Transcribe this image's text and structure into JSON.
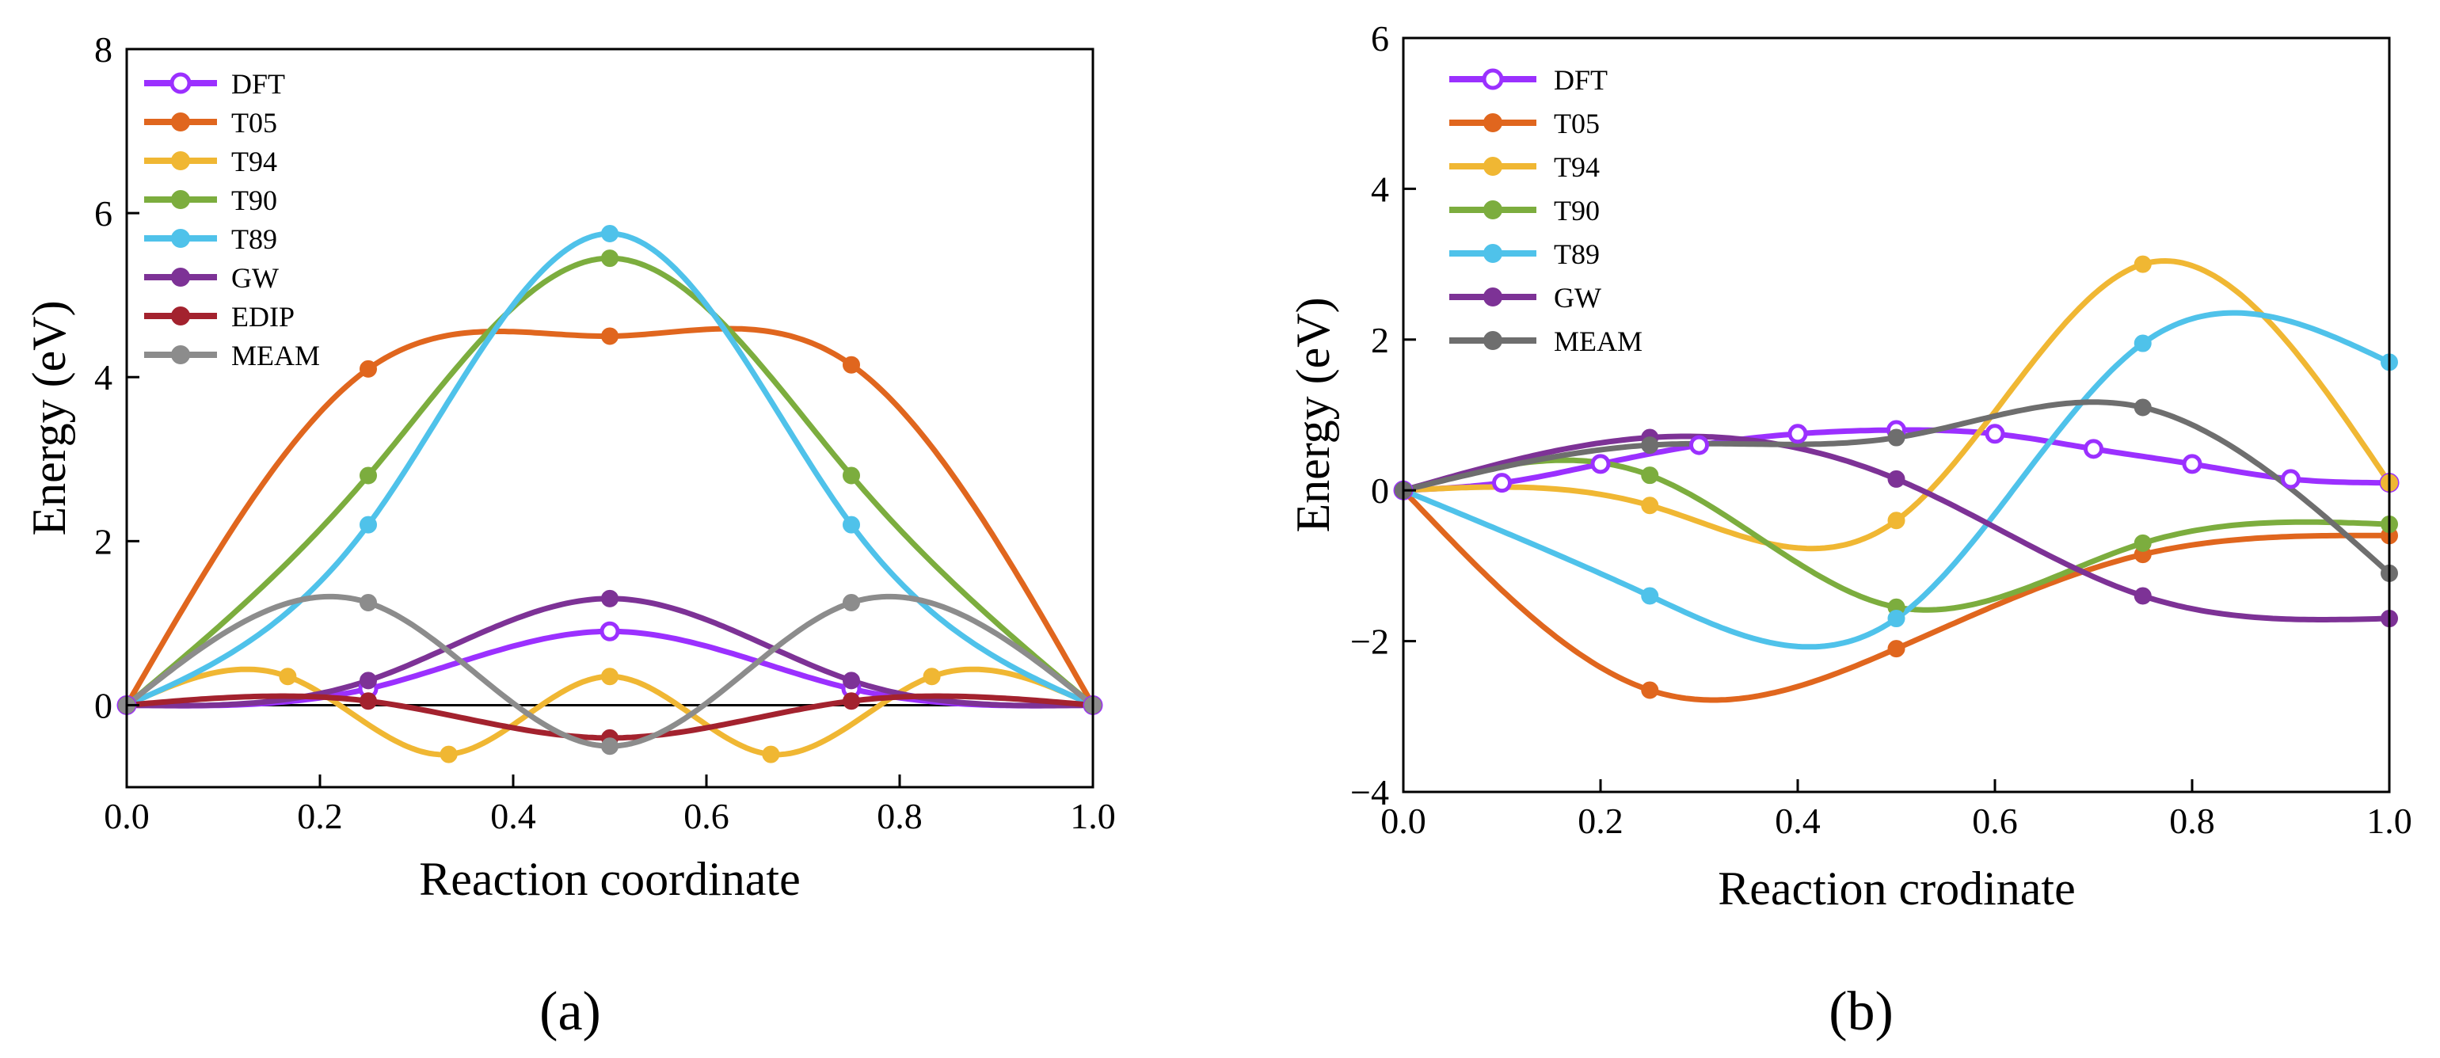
{
  "chart_data": [
    {
      "type": "line",
      "panel_label": "(a)",
      "xlabel": "Reaction coordinate",
      "ylabel": "Energy (eV)",
      "xlim": [
        0,
        1
      ],
      "ylim": [
        -1,
        8
      ],
      "xticks": [
        0.0,
        0.2,
        0.4,
        0.6,
        0.8,
        1.0
      ],
      "xtick_labels": [
        "0.0",
        "0.2",
        "0.4",
        "0.6",
        "0.8",
        "1.0"
      ],
      "yticks": [
        0,
        2,
        4,
        6,
        8
      ],
      "ytick_labels": [
        "0",
        "2",
        "4",
        "6",
        "8"
      ],
      "reference_line": 0,
      "legend_position": "top-left",
      "series": [
        {
          "name": "DFT",
          "color": "#9b30ff",
          "marker": "open-circle",
          "x": [
            0,
            0.25,
            0.5,
            0.75,
            1.0
          ],
          "y": [
            0,
            0.2,
            0.9,
            0.2,
            0
          ]
        },
        {
          "name": "T05",
          "color": "#e0661e",
          "marker": "filled-circle",
          "x": [
            0,
            0.25,
            0.5,
            0.75,
            1.0
          ],
          "y": [
            0,
            4.1,
            4.5,
            4.15,
            0
          ]
        },
        {
          "name": "T94",
          "color": "#f0b733",
          "marker": "filled-circle",
          "x": [
            0,
            0.1667,
            0.3333,
            0.5,
            0.6667,
            0.8333,
            1.0
          ],
          "y": [
            0,
            0.35,
            -0.6,
            0.35,
            -0.6,
            0.35,
            0
          ]
        },
        {
          "name": "T90",
          "color": "#7cad3e",
          "marker": "filled-circle",
          "x": [
            0,
            0.25,
            0.5,
            0.75,
            1.0
          ],
          "y": [
            0,
            2.8,
            5.45,
            2.8,
            0
          ]
        },
        {
          "name": "T89",
          "color": "#4fc2ea",
          "marker": "filled-circle",
          "x": [
            0,
            0.25,
            0.5,
            0.75,
            1.0
          ],
          "y": [
            0,
            2.2,
            5.75,
            2.2,
            0
          ]
        },
        {
          "name": "GW",
          "color": "#7d3296",
          "marker": "filled-circle",
          "x": [
            0,
            0.25,
            0.5,
            0.75,
            1.0
          ],
          "y": [
            0,
            0.3,
            1.3,
            0.3,
            0
          ]
        },
        {
          "name": "EDIP",
          "color": "#a3222e",
          "marker": "filled-circle",
          "x": [
            0,
            0.25,
            0.5,
            0.75,
            1.0
          ],
          "y": [
            0,
            0.05,
            -0.4,
            0.05,
            0
          ]
        },
        {
          "name": "MEAM",
          "color": "#8c8c8c",
          "marker": "filled-circle",
          "x": [
            0,
            0.25,
            0.5,
            0.75,
            1.0
          ],
          "y": [
            0,
            1.25,
            -0.5,
            1.25,
            0
          ]
        }
      ]
    },
    {
      "type": "line",
      "panel_label": "(b)",
      "xlabel": "Reaction crodinate",
      "ylabel": "Energy (eV)",
      "xlim": [
        0,
        1
      ],
      "ylim": [
        -4,
        6
      ],
      "xticks": [
        0.0,
        0.2,
        0.4,
        0.6,
        0.8,
        1.0
      ],
      "xtick_labels": [
        "0.0",
        "0.2",
        "0.4",
        "0.6",
        "0.8",
        "1.0"
      ],
      "yticks": [
        -4,
        -2,
        0,
        2,
        4,
        6
      ],
      "ytick_labels": [
        "−4",
        "−2",
        "0",
        "2",
        "4",
        "6"
      ],
      "legend_position": "top-left",
      "series": [
        {
          "name": "DFT",
          "color": "#9b30ff",
          "marker": "open-circle",
          "x": [
            0,
            0.1,
            0.2,
            0.3,
            0.4,
            0.5,
            0.6,
            0.7,
            0.8,
            0.9,
            1.0
          ],
          "y": [
            0,
            0.1,
            0.35,
            0.6,
            0.75,
            0.8,
            0.75,
            0.55,
            0.35,
            0.15,
            0.1
          ]
        },
        {
          "name": "T05",
          "color": "#e0661e",
          "marker": "filled-circle",
          "x": [
            0,
            0.25,
            0.5,
            0.75,
            1.0
          ],
          "y": [
            0,
            -2.65,
            -2.1,
            -0.85,
            -0.6
          ]
        },
        {
          "name": "T94",
          "color": "#f0b733",
          "marker": "filled-circle",
          "x": [
            0,
            0.25,
            0.5,
            0.75,
            1.0
          ],
          "y": [
            0,
            -0.2,
            -0.4,
            3.0,
            0.1
          ]
        },
        {
          "name": "T90",
          "color": "#7cad3e",
          "marker": "filled-circle",
          "x": [
            0,
            0.25,
            0.5,
            0.75,
            1.0
          ],
          "y": [
            0,
            0.2,
            -1.55,
            -0.7,
            -0.45
          ]
        },
        {
          "name": "T89",
          "color": "#4fc2ea",
          "marker": "filled-circle",
          "x": [
            0,
            0.25,
            0.5,
            0.75,
            1.0
          ],
          "y": [
            0,
            -1.4,
            -1.7,
            1.95,
            1.7
          ]
        },
        {
          "name": "GW",
          "color": "#7d3296",
          "marker": "filled-circle",
          "x": [
            0,
            0.25,
            0.5,
            0.75,
            1.0
          ],
          "y": [
            0,
            0.7,
            0.15,
            -1.4,
            -1.7
          ]
        },
        {
          "name": "MEAM",
          "color": "#6e6e6e",
          "marker": "filled-circle",
          "x": [
            0,
            0.25,
            0.5,
            0.75,
            1.0
          ],
          "y": [
            0,
            0.6,
            0.7,
            1.1,
            -1.1
          ]
        }
      ]
    }
  ]
}
